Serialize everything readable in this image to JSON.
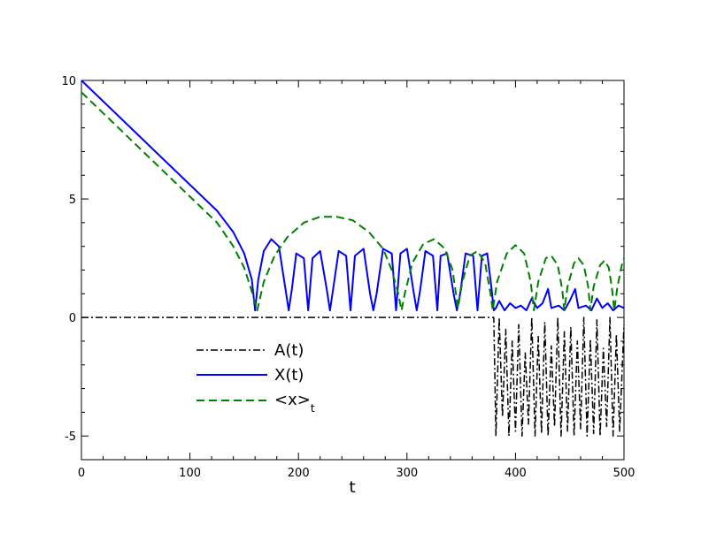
{
  "chart_data": {
    "type": "line",
    "title": "",
    "xlabel": "t",
    "ylabel": "",
    "xlim": [
      0,
      500
    ],
    "ylim": [
      -6,
      10
    ],
    "xticks": [
      0,
      100,
      200,
      300,
      400,
      500
    ],
    "yticks": [
      -5,
      0,
      5,
      10
    ],
    "xtick_labels": [
      "0",
      "100",
      "200",
      "300",
      "400",
      "500"
    ],
    "ytick_labels": [
      "-5",
      "0",
      "5",
      "10"
    ],
    "grid": false,
    "legend_position": "lower-left",
    "series": [
      {
        "name": "A(t)",
        "color": "#000000",
        "style": "dash-dot",
        "points": [
          [
            0,
            0
          ],
          [
            50,
            0
          ],
          [
            100,
            0
          ],
          [
            150,
            0
          ],
          [
            160,
            0
          ],
          [
            190,
            0
          ],
          [
            220,
            0
          ],
          [
            250,
            0
          ],
          [
            280,
            0
          ],
          [
            310,
            0
          ],
          [
            340,
            0
          ],
          [
            370,
            0
          ],
          [
            380,
            0
          ],
          [
            382,
            -5.0
          ],
          [
            385,
            0
          ],
          [
            388,
            -4.2
          ],
          [
            391,
            -0.5
          ],
          [
            394,
            -5.0
          ],
          [
            397,
            -1.0
          ],
          [
            400,
            -4.8
          ],
          [
            403,
            -0.3
          ],
          [
            406,
            -5.0
          ],
          [
            409,
            -1.5
          ],
          [
            412,
            -4.5
          ],
          [
            415,
            0
          ],
          [
            418,
            -5.0
          ],
          [
            421,
            -0.8
          ],
          [
            424,
            -4.9
          ],
          [
            427,
            -0.2
          ],
          [
            430,
            -5.0
          ],
          [
            433,
            -1.2
          ],
          [
            436,
            -4.6
          ],
          [
            439,
            0
          ],
          [
            442,
            -5.0
          ],
          [
            445,
            -0.6
          ],
          [
            448,
            -4.8
          ],
          [
            451,
            -0.4
          ],
          [
            454,
            -5.0
          ],
          [
            457,
            -1.0
          ],
          [
            460,
            -4.7
          ],
          [
            463,
            0
          ],
          [
            466,
            -5.0
          ],
          [
            469,
            -0.9
          ],
          [
            472,
            -4.9
          ],
          [
            475,
            -0.1
          ],
          [
            478,
            -5.0
          ],
          [
            481,
            -1.3
          ],
          [
            484,
            -4.6
          ],
          [
            487,
            0
          ],
          [
            490,
            -5.0
          ],
          [
            493,
            -0.7
          ],
          [
            496,
            -4.8
          ],
          [
            500,
            -0.3
          ]
        ]
      },
      {
        "name": "X(t)",
        "color": "#0000ff",
        "style": "solid",
        "points": [
          [
            0,
            10.0
          ],
          [
            25,
            8.9
          ],
          [
            50,
            7.8
          ],
          [
            75,
            6.7
          ],
          [
            100,
            5.6
          ],
          [
            125,
            4.5
          ],
          [
            140,
            3.6
          ],
          [
            150,
            2.7
          ],
          [
            157,
            1.6
          ],
          [
            160,
            0.3
          ],
          [
            163,
            1.6
          ],
          [
            168,
            2.8
          ],
          [
            175,
            3.3
          ],
          [
            182,
            3.0
          ],
          [
            188,
            1.2
          ],
          [
            191,
            0.3
          ],
          [
            194,
            1.2
          ],
          [
            198,
            2.7
          ],
          [
            205,
            2.5
          ],
          [
            209,
            0.3
          ],
          [
            213,
            2.5
          ],
          [
            220,
            2.8
          ],
          [
            226,
            1.2
          ],
          [
            229,
            0.3
          ],
          [
            232,
            1.2
          ],
          [
            237,
            2.8
          ],
          [
            244,
            2.6
          ],
          [
            248,
            0.3
          ],
          [
            252,
            2.6
          ],
          [
            260,
            2.9
          ],
          [
            266,
            1.0
          ],
          [
            269,
            0.3
          ],
          [
            272,
            1.0
          ],
          [
            278,
            2.9
          ],
          [
            286,
            2.7
          ],
          [
            290,
            0.3
          ],
          [
            294,
            2.7
          ],
          [
            300,
            2.9
          ],
          [
            306,
            1.1
          ],
          [
            309,
            0.3
          ],
          [
            312,
            1.1
          ],
          [
            317,
            2.8
          ],
          [
            324,
            2.6
          ],
          [
            328,
            0.3
          ],
          [
            331,
            2.6
          ],
          [
            337,
            2.7
          ],
          [
            343,
            1.0
          ],
          [
            346,
            0.3
          ],
          [
            349,
            1.0
          ],
          [
            354,
            2.7
          ],
          [
            361,
            2.6
          ],
          [
            365,
            0.3
          ],
          [
            369,
            2.6
          ],
          [
            374,
            2.7
          ],
          [
            378,
            1.2
          ],
          [
            380,
            0.3
          ],
          [
            382,
            0.4
          ],
          [
            385,
            0.7
          ],
          [
            390,
            0.3
          ],
          [
            395,
            0.6
          ],
          [
            400,
            0.4
          ],
          [
            405,
            0.5
          ],
          [
            410,
            0.3
          ],
          [
            415,
            0.8
          ],
          [
            420,
            0.4
          ],
          [
            425,
            0.6
          ],
          [
            430,
            1.2
          ],
          [
            433,
            0.4
          ],
          [
            440,
            0.5
          ],
          [
            445,
            0.3
          ],
          [
            450,
            0.7
          ],
          [
            455,
            1.2
          ],
          [
            458,
            0.4
          ],
          [
            465,
            0.5
          ],
          [
            470,
            0.3
          ],
          [
            475,
            0.8
          ],
          [
            480,
            0.4
          ],
          [
            485,
            0.6
          ],
          [
            490,
            0.3
          ],
          [
            495,
            0.5
          ],
          [
            500,
            0.4
          ]
        ]
      },
      {
        "name": "<x>_t",
        "color": "#008000",
        "style": "dashed",
        "points": [
          [
            0,
            9.5
          ],
          [
            25,
            8.4
          ],
          [
            50,
            7.3
          ],
          [
            75,
            6.2
          ],
          [
            100,
            5.1
          ],
          [
            125,
            4.0
          ],
          [
            140,
            3.0
          ],
          [
            150,
            2.1
          ],
          [
            157,
            1.1
          ],
          [
            162,
            0.3
          ],
          [
            168,
            1.5
          ],
          [
            178,
            2.6
          ],
          [
            190,
            3.4
          ],
          [
            205,
            4.0
          ],
          [
            220,
            4.25
          ],
          [
            235,
            4.25
          ],
          [
            250,
            4.1
          ],
          [
            265,
            3.6
          ],
          [
            278,
            2.9
          ],
          [
            286,
            2.0
          ],
          [
            292,
            1.0
          ],
          [
            295,
            0.3
          ],
          [
            298,
            1.0
          ],
          [
            305,
            2.3
          ],
          [
            315,
            3.1
          ],
          [
            325,
            3.3
          ],
          [
            335,
            2.9
          ],
          [
            342,
            2.0
          ],
          [
            347,
            0.4
          ],
          [
            351,
            1.5
          ],
          [
            358,
            2.6
          ],
          [
            365,
            2.8
          ],
          [
            372,
            2.3
          ],
          [
            377,
            1.0
          ],
          [
            379,
            0.3
          ],
          [
            383,
            1.5
          ],
          [
            392,
            2.7
          ],
          [
            400,
            3.05
          ],
          [
            408,
            2.7
          ],
          [
            414,
            1.5
          ],
          [
            417,
            0.3
          ],
          [
            421,
            1.5
          ],
          [
            428,
            2.5
          ],
          [
            433,
            2.6
          ],
          [
            439,
            2.2
          ],
          [
            443,
            1.2
          ],
          [
            445,
            0.3
          ],
          [
            448,
            1.3
          ],
          [
            454,
            2.3
          ],
          [
            458,
            2.5
          ],
          [
            463,
            2.2
          ],
          [
            467,
            1.3
          ],
          [
            469,
            0.3
          ],
          [
            472,
            1.3
          ],
          [
            478,
            2.2
          ],
          [
            482,
            2.4
          ],
          [
            486,
            2.1
          ],
          [
            489,
            1.2
          ],
          [
            491,
            0.3
          ],
          [
            494,
            1.3
          ],
          [
            498,
            2.2
          ],
          [
            500,
            2.5
          ]
        ]
      }
    ]
  }
}
